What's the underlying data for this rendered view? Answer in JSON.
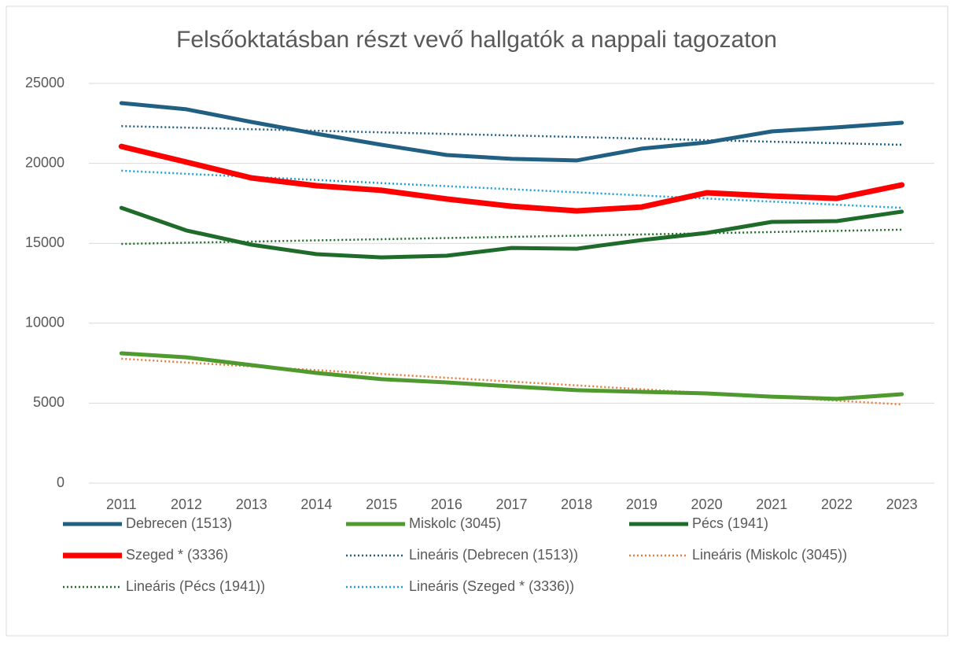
{
  "chart_data": {
    "type": "line",
    "title": "Felsőoktatásban részt vevő hallgatók a nappali tagozaton",
    "categories": [
      "2011",
      "2012",
      "2013",
      "2014",
      "2015",
      "2016",
      "2017",
      "2018",
      "2019",
      "2020",
      "2021",
      "2022",
      "2023"
    ],
    "ylim": [
      0,
      25000
    ],
    "yticks": [
      0,
      5000,
      10000,
      15000,
      20000,
      25000
    ],
    "grid": true,
    "legend": "bottom",
    "series": [
      {
        "name": "Debrecen (1513)",
        "color": "#215f83",
        "style": "solid",
        "line_width": 5,
        "values": [
          23770,
          23380,
          22590,
          21850,
          21160,
          20520,
          20280,
          20180,
          20920,
          21310,
          22000,
          22250,
          22540
        ]
      },
      {
        "name": "Miskolc (3045)",
        "color": "#4e9a2e",
        "style": "solid",
        "line_width": 5,
        "values": [
          8120,
          7870,
          7380,
          6890,
          6500,
          6300,
          6050,
          5810,
          5710,
          5610,
          5410,
          5270,
          5560
        ]
      },
      {
        "name": "Pécs (1941)",
        "color": "#1e6b2a",
        "style": "solid",
        "line_width": 5,
        "values": [
          17220,
          15800,
          14910,
          14320,
          14120,
          14220,
          14710,
          14660,
          15200,
          15650,
          16340,
          16390,
          16980
        ]
      },
      {
        "name": "Szeged * (3336)",
        "color": "#ff0000",
        "style": "solid",
        "line_width": 7,
        "values": [
          21060,
          20080,
          19090,
          18600,
          18310,
          17770,
          17320,
          17030,
          17270,
          18160,
          17960,
          17810,
          18650
        ]
      },
      {
        "name": "Lineáris (Debrecen (1513))",
        "color": "#215f83",
        "style": "dotted",
        "line_width": 2.5,
        "values": [
          22330,
          22233,
          22135,
          22038,
          21940,
          21843,
          21745,
          21648,
          21550,
          21453,
          21355,
          21258,
          21160
        ]
      },
      {
        "name": "Lineáris (Miskolc (3045))",
        "color": "#e97c3a",
        "style": "dotted",
        "line_width": 2.5,
        "values": [
          7780,
          7542,
          7303,
          7065,
          6827,
          6588,
          6350,
          6112,
          5873,
          5635,
          5397,
          5158,
          4920
        ]
      },
      {
        "name": "Lineáris (Pécs (1941))",
        "color": "#1e6b2a",
        "style": "dotted",
        "line_width": 2.5,
        "values": [
          14960,
          15034,
          15108,
          15183,
          15257,
          15331,
          15405,
          15479,
          15553,
          15628,
          15702,
          15776,
          15850
        ]
      },
      {
        "name": "Lineáris (Szeged * (3336))",
        "color": "#1aa0d8",
        "style": "dotted",
        "line_width": 2.5,
        "values": [
          19540,
          19347,
          19153,
          18960,
          18767,
          18573,
          18380,
          18187,
          17993,
          17800,
          17607,
          17413,
          17220
        ]
      }
    ]
  }
}
